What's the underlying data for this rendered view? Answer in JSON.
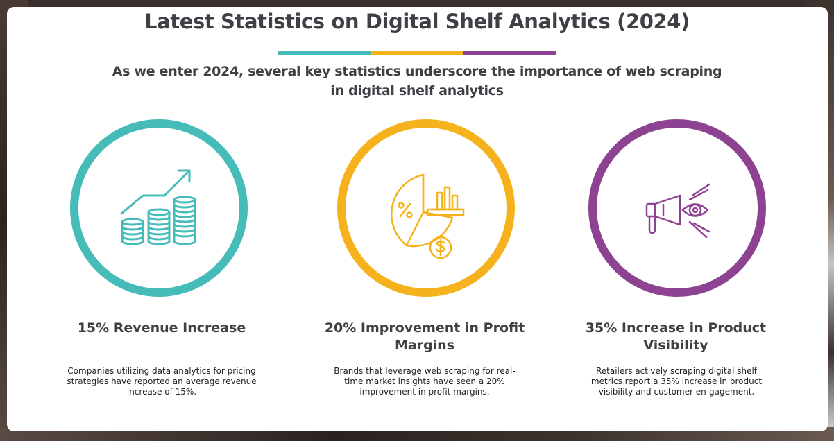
{
  "header": {
    "title": "Latest Statistics on Digital Shelf Analytics (2024)",
    "subtitle": "As we enter 2024, several key statistics underscore the importance of web scraping in digital shelf analytics"
  },
  "colors": {
    "teal": "#45bcb8",
    "yellow": "#f5b21c",
    "purple": "#8e4392",
    "text": "#3f3f45"
  },
  "stats": [
    {
      "icon": "revenue-growth-coins-icon",
      "color": "#45bcb8",
      "title": "15% Revenue Increase",
      "description": "Companies utilizing data analytics for pricing strategies have reported an average revenue increase of 15%."
    },
    {
      "icon": "profit-margin-pie-chart-icon",
      "color": "#f5b21c",
      "title": "20% Improvement in Profit Margins",
      "description": "Brands that leverage web scraping for real-time market insights have seen a 20% improvement in profit margins."
    },
    {
      "icon": "megaphone-eye-visibility-icon",
      "color": "#8e4392",
      "title": "35% Increase in Product Visibility",
      "description": "Retailers actively scraping digital shelf metrics report a 35% increase in product visibility and customer en-gagement."
    }
  ]
}
